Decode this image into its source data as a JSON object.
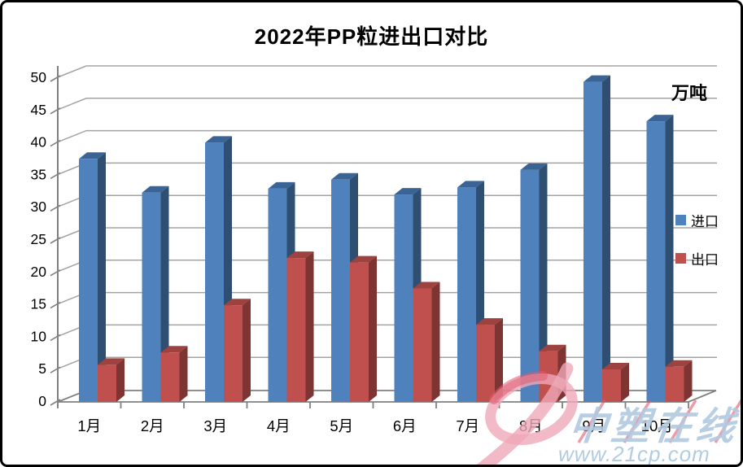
{
  "chart_data": {
    "type": "bar",
    "style": "3d-clustered-column",
    "title": "2022年PP粒进出口对比",
    "unit_label": "万吨",
    "categories": [
      "1月",
      "2月",
      "3月",
      "4月",
      "5月",
      "6月",
      "7月",
      "8月",
      "9月",
      "10月"
    ],
    "series": [
      {
        "name": "进口",
        "color": "#4f81bd",
        "color_top": "#3a6496",
        "color_side": "#2e4f72",
        "values": [
          37.4,
          32.2,
          39.9,
          32.8,
          34.2,
          31.9,
          33.0,
          35.7,
          49.3,
          43.2
        ]
      },
      {
        "name": "出口",
        "color": "#c0504d",
        "color_top": "#9e4240",
        "color_side": "#7d3432",
        "values": [
          5.6,
          7.5,
          14.8,
          22.1,
          21.4,
          17.4,
          11.8,
          7.7,
          4.9,
          5.3
        ]
      }
    ],
    "ylim": [
      0,
      50
    ],
    "ytick_step": 5,
    "grid": true,
    "legend_position": "right",
    "grid_color": "#a3a3a3",
    "axis_color": "#808080",
    "tick_label_color": "#000000"
  },
  "watermark": {
    "brand": "中塑在线",
    "url": "www.21cp.com",
    "logo": "swoosh-p-logo",
    "logo_color": "#efa7b8",
    "logo_accent_color": "#e25a70",
    "text_color": "#b0c9df"
  }
}
